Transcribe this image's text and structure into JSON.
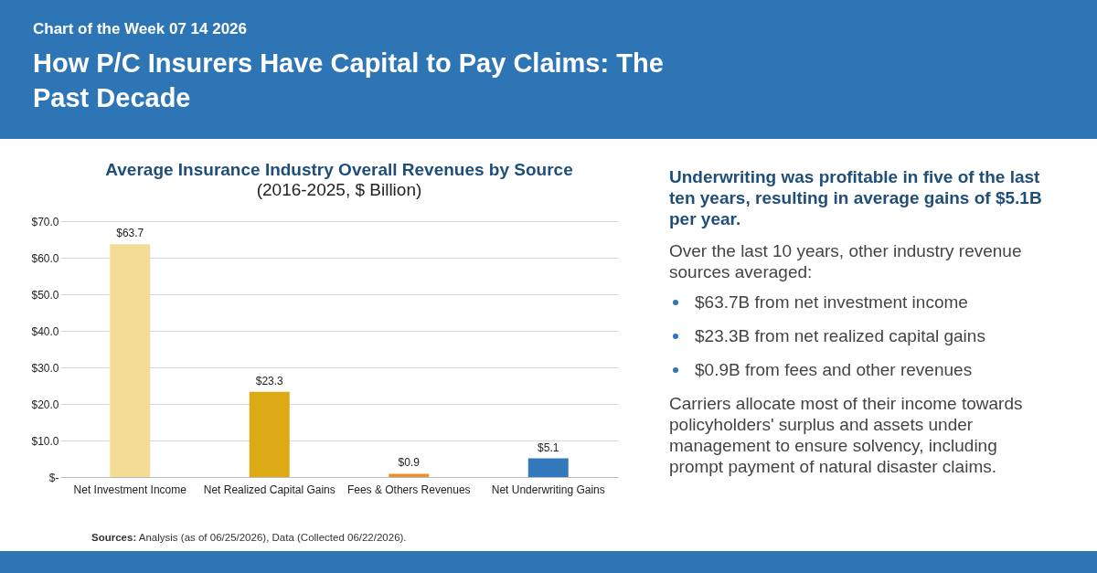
{
  "chart_data": {
    "type": "bar",
    "title": "Average Insurance Industry Overall Revenues by Source",
    "subtitle": "(2016-2025, $ Billion)",
    "categories": [
      "Net Investment Income",
      "Net Realized Capital Gains",
      "Fees & Others Revenues",
      "Net Underwriting Gains"
    ],
    "values": [
      63.7,
      23.3,
      0.9,
      5.1
    ],
    "colors": [
      "#f5dc96",
      "#dcaa14",
      "#e8922e",
      "#3579bd"
    ],
    "value_labels": [
      "$63.7",
      "$23.3",
      "$0.9",
      "$5.1"
    ],
    "ylim": [
      0,
      70
    ],
    "yticks": [
      {
        "value": 0,
        "label": "$-"
      },
      {
        "value": 10,
        "label": "$10.0"
      },
      {
        "value": 20,
        "label": "$20.0"
      },
      {
        "value": 30,
        "label": "$30.0"
      },
      {
        "value": 40,
        "label": "$40.0"
      },
      {
        "value": 50,
        "label": "$50.0"
      },
      {
        "value": 60,
        "label": "$60.0"
      },
      {
        "value": 70,
        "label": "$70.0"
      }
    ],
    "grid": "y",
    "annotations": [
      "Chart of the Week 07 14 2026",
      "How P/C Insurers Have Capital to Pay Claims: The Past Decade",
      "Underwriting was profitable in five of the last ten years, resulting in average gains of $5.1B per year.",
      "Over the last 10 years, other industry revenue sources averaged:",
      "$63.7B from net investment income",
      "$23.3B from net realized capital gains",
      "$0.9B from fees and other revenues",
      "Carriers allocate most of their income towards policyholders' surplus and assets under management to ensure solvency, including prompt payment of natural disaster claims.",
      "Sources: Analysis (as of 06/25/2026), Data (Collected 06/22/2026)."
    ]
  }
}
